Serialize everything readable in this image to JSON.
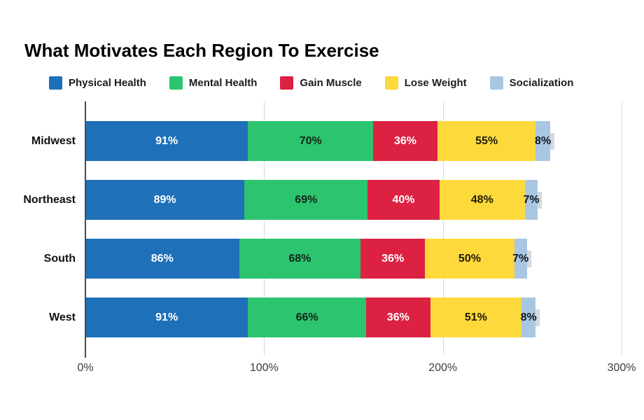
{
  "title": "What Motivates Each Region To Exercise",
  "chart_data": {
    "type": "bar",
    "stacked": true,
    "orientation": "horizontal",
    "title": "What Motivates Each Region To Exercise",
    "categories": [
      "Midwest",
      "Northeast",
      "South",
      "West"
    ],
    "series": [
      {
        "name": "Physical Health",
        "color": "#1e70b8",
        "label_color": "#ffffff",
        "values": [
          91,
          89,
          86,
          91
        ]
      },
      {
        "name": "Mental Health",
        "color": "#2cc46e",
        "label_color": "#15261b",
        "values": [
          70,
          69,
          68,
          66
        ]
      },
      {
        "name": "Gain Muscle",
        "color": "#dc2143",
        "label_color": "#ffffff",
        "values": [
          36,
          40,
          36,
          36
        ]
      },
      {
        "name": "Lose Weight",
        "color": "#fdd93c",
        "label_color": "#1f1c08",
        "values": [
          55,
          48,
          50,
          51
        ]
      },
      {
        "name": "Socialization",
        "color": "#a9c7e3",
        "label_color": "#12161b",
        "values": [
          8,
          7,
          7,
          8
        ]
      }
    ],
    "value_suffix": "%",
    "x_axis": {
      "ticks": [
        {
          "label": "0%",
          "value": 0
        },
        {
          "label": "100%",
          "value": 100
        },
        {
          "label": "200%",
          "value": 200
        },
        {
          "label": "300%",
          "value": 300
        }
      ],
      "max": 300
    },
    "legend_position": "top",
    "grid": "vertical",
    "background": "#ffffff"
  }
}
